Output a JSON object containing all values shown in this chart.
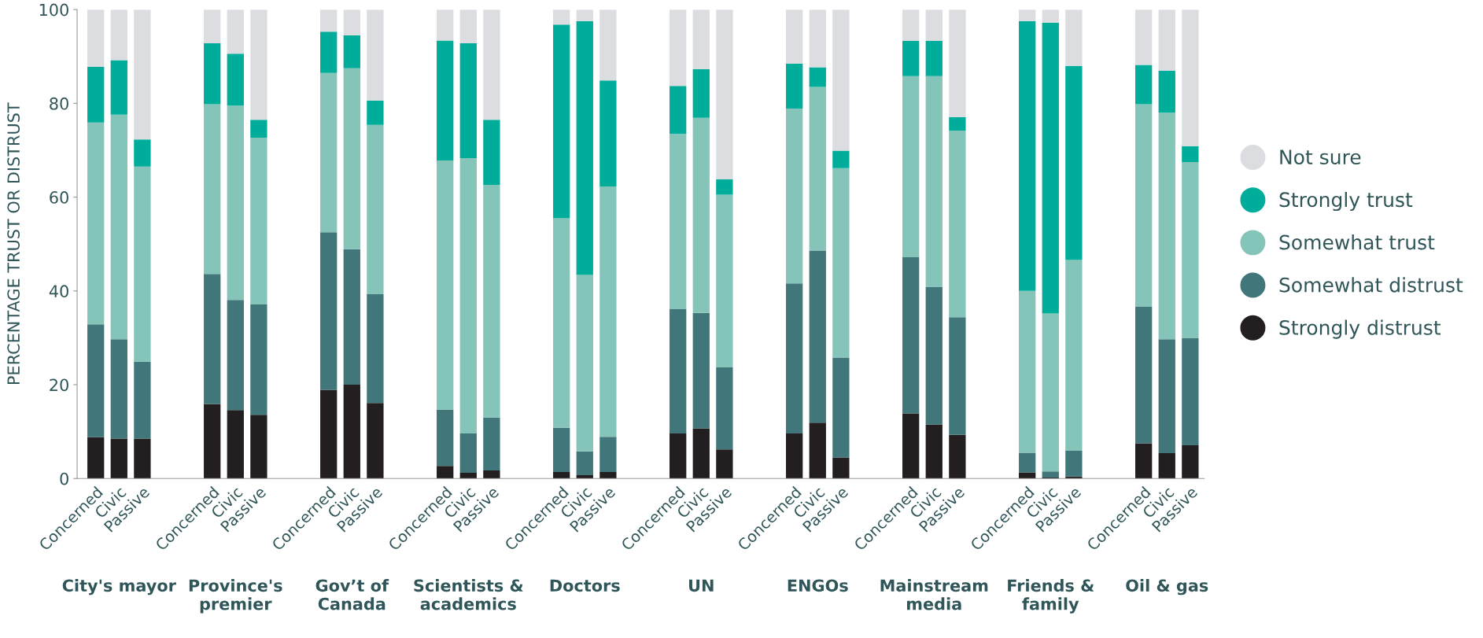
{
  "chart_data": {
    "type": "bar",
    "stacked": true,
    "ylabel": "PERCENTAGE TRUST OR DISTRUST",
    "categories": [
      "Concerned",
      "Civic",
      "Passive",
      null,
      null,
      "Concerned",
      "Civic",
      "Passive",
      null,
      null,
      "Concerned",
      "Civic",
      "Passive",
      null,
      null,
      "Concerned",
      "Civic",
      "Passive",
      null,
      null,
      "Concerned",
      "Civic",
      "Passive",
      null,
      null,
      "Concerned",
      "Civic",
      "Passive",
      null,
      null,
      "Concerned",
      "Civic",
      "Passive",
      null,
      null,
      "Concerned",
      "Civic",
      "Passive",
      null,
      null,
      "Concerned",
      "Civic",
      "Passive",
      null,
      null,
      "Concerned",
      "Civic",
      "Passive"
    ],
    "series": [
      {
        "name": "Strongly distrust",
        "color": "#231f20",
        "values": [
          8.8,
          8.5,
          8.5,
          null,
          null,
          15.9,
          14.6,
          13.6,
          null,
          null,
          18.9,
          20.0,
          16.1,
          null,
          null,
          2.7,
          1.2,
          1.7,
          null,
          null,
          1.4,
          0.7,
          1.4,
          null,
          null,
          9.6,
          10.7,
          6.2,
          null,
          null,
          9.6,
          11.9,
          4.5,
          null,
          null,
          13.9,
          11.5,
          9.3,
          null,
          null,
          1.3,
          0.2,
          0.4,
          null,
          null,
          7.5,
          5.4,
          7.1
        ]
      },
      {
        "name": "Somewhat distrust",
        "color": "#41767a",
        "values": [
          24.1,
          21.2,
          16.4,
          null,
          null,
          27.7,
          23.5,
          23.5,
          null,
          null,
          33.6,
          28.9,
          23.2,
          null,
          null,
          12.0,
          8.4,
          11.3,
          null,
          null,
          9.4,
          5.1,
          7.5,
          null,
          null,
          26.5,
          24.6,
          17.5,
          null,
          null,
          32.0,
          36.7,
          21.3,
          null,
          null,
          33.3,
          29.3,
          25.1,
          null,
          null,
          4.2,
          1.3,
          5.5,
          null,
          null,
          29.1,
          24.3,
          22.8
        ]
      },
      {
        "name": "Somewhat trust",
        "color": "#85c4b9",
        "values": [
          43.0,
          47.9,
          41.6,
          null,
          null,
          36.2,
          41.4,
          35.6,
          null,
          null,
          34.0,
          38.6,
          36.1,
          null,
          null,
          53.1,
          58.7,
          49.6,
          null,
          null,
          44.7,
          37.6,
          53.4,
          null,
          null,
          37.4,
          41.6,
          36.8,
          null,
          null,
          37.3,
          34.9,
          40.4,
          null,
          null,
          38.6,
          45.0,
          39.8,
          null,
          null,
          34.5,
          33.7,
          40.7,
          null,
          null,
          43.2,
          48.3,
          37.6
        ]
      },
      {
        "name": "Strongly trust",
        "color": "#00ad9a",
        "values": [
          11.9,
          11.6,
          5.8,
          null,
          null,
          13.0,
          11.1,
          3.8,
          null,
          null,
          8.8,
          7.0,
          5.2,
          null,
          null,
          25.6,
          24.5,
          13.9,
          null,
          null,
          41.3,
          54.1,
          22.6,
          null,
          null,
          10.2,
          10.4,
          3.3,
          null,
          null,
          9.6,
          4.2,
          3.7,
          null,
          null,
          7.5,
          7.5,
          2.9,
          null,
          null,
          57.5,
          62.0,
          41.4,
          null,
          null,
          8.4,
          9.0,
          3.4
        ]
      },
      {
        "name": "Not sure",
        "color": "#dcdde0",
        "values": [
          12.2,
          10.8,
          27.7,
          null,
          null,
          7.2,
          9.4,
          23.5,
          null,
          null,
          4.7,
          5.5,
          19.4,
          null,
          null,
          6.6,
          7.2,
          23.5,
          null,
          null,
          3.2,
          2.5,
          15.1,
          null,
          null,
          16.3,
          12.7,
          36.2,
          null,
          null,
          11.5,
          12.3,
          30.1,
          null,
          null,
          6.7,
          6.7,
          22.9,
          null,
          null,
          2.5,
          2.8,
          12.0,
          null,
          null,
          11.8,
          13.0,
          29.1
        ]
      }
    ],
    "annotations": [
      "City's mayor",
      "Province's\npremier",
      "Gov’t of\nCanada",
      "Scientists &\nacademics",
      "Doctors",
      "UN",
      "ENGOs",
      "Mainstream\nmedia",
      "Friends &\nfamily",
      "Oil & gas"
    ],
    "ylim": [
      0,
      100
    ],
    "yticks": [
      0,
      20,
      40,
      60,
      80,
      100
    ],
    "grid": false,
    "legend": "right"
  }
}
